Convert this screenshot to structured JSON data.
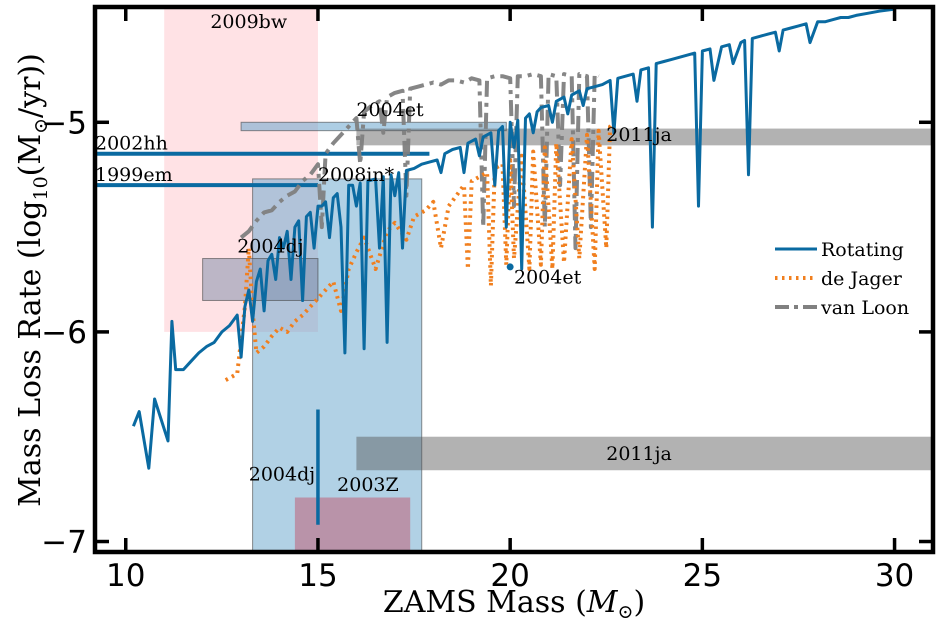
{
  "chart_data": {
    "type": "line",
    "xlabel_text": "ZAMS Mass (",
    "xlabel_math": "M",
    "xlabel_sub": "⊙",
    "xlabel_close": ")",
    "ylabel_text": "Mass Loss Rate (log",
    "ylabel_sub": "10",
    "ylabel_mid": "(M",
    "ylabel_sun": "⊙",
    "ylabel_close": "/yr))",
    "xlim": [
      9.2,
      31.0
    ],
    "ylim": [
      -7.05,
      -4.45
    ],
    "xticks": [
      10,
      15,
      20,
      25,
      30
    ],
    "xtick_labels": [
      "10",
      "15",
      "20",
      "25",
      "30"
    ],
    "yticks": [
      -7,
      -6,
      -5
    ],
    "ytick_labels": [
      "−7",
      "−6",
      "−5"
    ],
    "legend_position": "center-right",
    "series": [
      {
        "name": "Rotating",
        "color": "#0a6aa1",
        "style": "solid",
        "points": [
          [
            10.2,
            -6.45
          ],
          [
            10.35,
            -6.38
          ],
          [
            10.6,
            -6.65
          ],
          [
            10.75,
            -6.32
          ],
          [
            11.1,
            -6.52
          ],
          [
            11.2,
            -5.95
          ],
          [
            11.3,
            -6.18
          ],
          [
            11.5,
            -6.18
          ],
          [
            11.7,
            -6.14
          ],
          [
            11.9,
            -6.1
          ],
          [
            12.1,
            -6.07
          ],
          [
            12.3,
            -6.05
          ],
          [
            12.5,
            -6.0
          ],
          [
            12.7,
            -5.97
          ],
          [
            12.9,
            -5.92
          ],
          [
            13.0,
            -6.12
          ],
          [
            13.1,
            -5.88
          ],
          [
            13.2,
            -5.8
          ],
          [
            13.3,
            -5.95
          ],
          [
            13.4,
            -5.76
          ],
          [
            13.5,
            -5.7
          ],
          [
            13.6,
            -5.9
          ],
          [
            13.7,
            -5.66
          ],
          [
            13.8,
            -5.63
          ],
          [
            13.9,
            -5.75
          ],
          [
            14.0,
            -5.55
          ],
          [
            14.1,
            -5.6
          ],
          [
            14.2,
            -5.52
          ],
          [
            14.3,
            -5.75
          ],
          [
            14.4,
            -5.5
          ],
          [
            14.5,
            -5.47
          ],
          [
            14.6,
            -5.85
          ],
          [
            14.7,
            -5.45
          ],
          [
            14.8,
            -5.43
          ],
          [
            14.9,
            -5.6
          ],
          [
            15.0,
            -5.4
          ],
          [
            15.1,
            -5.4
          ],
          [
            15.2,
            -5.38
          ],
          [
            15.3,
            -5.55
          ],
          [
            15.4,
            -5.36
          ],
          [
            15.5,
            -5.34
          ],
          [
            15.6,
            -5.5
          ],
          [
            15.7,
            -6.1
          ],
          [
            15.8,
            -5.3
          ],
          [
            15.9,
            -5.3
          ],
          [
            16.0,
            -5.4
          ],
          [
            16.1,
            -5.29
          ],
          [
            16.2,
            -6.08
          ],
          [
            16.3,
            -5.28
          ],
          [
            16.5,
            -5.27
          ],
          [
            16.6,
            -5.6
          ],
          [
            16.7,
            -5.26
          ],
          [
            16.8,
            -6.05
          ],
          [
            16.9,
            -5.25
          ],
          [
            17.0,
            -5.35
          ],
          [
            17.1,
            -5.24
          ],
          [
            17.2,
            -5.6
          ],
          [
            17.3,
            -5.23
          ],
          [
            17.5,
            -5.22
          ],
          [
            17.7,
            -5.2
          ],
          [
            17.9,
            -5.19
          ],
          [
            18.1,
            -5.18
          ],
          [
            18.2,
            -5.24
          ],
          [
            18.3,
            -5.15
          ],
          [
            18.5,
            -5.13
          ],
          [
            18.7,
            -5.12
          ],
          [
            18.8,
            -5.24
          ],
          [
            18.9,
            -5.1
          ],
          [
            19.1,
            -5.08
          ],
          [
            19.2,
            -5.16
          ],
          [
            19.3,
            -5.07
          ],
          [
            19.5,
            -5.05
          ],
          [
            19.6,
            -5.3
          ],
          [
            19.7,
            -5.04
          ],
          [
            19.8,
            -5.02
          ],
          [
            19.9,
            -5.5
          ],
          [
            20.0,
            -5.0
          ],
          [
            20.1,
            -5.12
          ],
          [
            20.2,
            -4.99
          ],
          [
            20.3,
            -5.7
          ],
          [
            20.4,
            -4.98
          ],
          [
            20.5,
            -4.96
          ],
          [
            20.6,
            -5.05
          ],
          [
            20.7,
            -4.95
          ],
          [
            20.8,
            -4.93
          ],
          [
            21.0,
            -4.92
          ],
          [
            21.1,
            -5.0
          ],
          [
            21.2,
            -4.9
          ],
          [
            21.4,
            -4.88
          ],
          [
            21.5,
            -4.96
          ],
          [
            21.6,
            -4.87
          ],
          [
            21.8,
            -4.85
          ],
          [
            21.9,
            -4.92
          ],
          [
            22.0,
            -4.84
          ],
          [
            22.2,
            -4.83
          ],
          [
            22.4,
            -4.82
          ],
          [
            22.6,
            -4.8
          ],
          [
            22.7,
            -5.05
          ],
          [
            22.8,
            -4.79
          ],
          [
            23.0,
            -4.78
          ],
          [
            23.2,
            -4.77
          ],
          [
            23.3,
            -4.9
          ],
          [
            23.4,
            -4.75
          ],
          [
            23.6,
            -4.74
          ],
          [
            23.7,
            -5.5
          ],
          [
            23.8,
            -4.72
          ],
          [
            24.0,
            -4.71
          ],
          [
            24.2,
            -4.7
          ],
          [
            24.4,
            -4.69
          ],
          [
            24.6,
            -4.68
          ],
          [
            24.8,
            -4.67
          ],
          [
            24.9,
            -5.4
          ],
          [
            25.0,
            -4.66
          ],
          [
            25.2,
            -4.65
          ],
          [
            25.3,
            -4.8
          ],
          [
            25.5,
            -4.64
          ],
          [
            25.7,
            -4.63
          ],
          [
            25.8,
            -4.72
          ],
          [
            26.0,
            -4.62
          ],
          [
            26.1,
            -4.61
          ],
          [
            26.2,
            -5.25
          ],
          [
            26.3,
            -4.6
          ],
          [
            26.5,
            -4.59
          ],
          [
            26.7,
            -4.58
          ],
          [
            26.9,
            -4.57
          ],
          [
            27.0,
            -4.66
          ],
          [
            27.1,
            -4.56
          ],
          [
            27.3,
            -4.55
          ],
          [
            27.5,
            -4.54
          ],
          [
            27.7,
            -4.53
          ],
          [
            27.8,
            -4.62
          ],
          [
            28.0,
            -4.52
          ],
          [
            28.2,
            -4.52
          ],
          [
            28.4,
            -4.51
          ],
          [
            28.6,
            -4.5
          ],
          [
            28.8,
            -4.5
          ],
          [
            29.0,
            -4.49
          ],
          [
            29.3,
            -4.48
          ],
          [
            29.6,
            -4.47
          ],
          [
            30.0,
            -4.46
          ]
        ]
      },
      {
        "name": "de Jager",
        "color": "#f17f1e",
        "style": "dotted",
        "points": [
          [
            12.6,
            -6.23
          ],
          [
            12.9,
            -6.2
          ],
          [
            13.1,
            -5.88
          ],
          [
            13.2,
            -5.6
          ],
          [
            13.3,
            -5.9
          ],
          [
            13.4,
            -6.1
          ],
          [
            13.6,
            -6.07
          ],
          [
            13.8,
            -6.02
          ],
          [
            14.0,
            -5.98
          ],
          [
            14.2,
            -6.0
          ],
          [
            14.4,
            -5.95
          ],
          [
            14.6,
            -5.92
          ],
          [
            14.8,
            -5.88
          ],
          [
            15.0,
            -5.84
          ],
          [
            15.2,
            -5.8
          ],
          [
            15.4,
            -5.76
          ],
          [
            15.6,
            -5.9
          ],
          [
            15.8,
            -5.7
          ],
          [
            15.9,
            -5.66
          ],
          [
            16.0,
            -5.62
          ],
          [
            16.2,
            -5.55
          ],
          [
            16.5,
            -5.7
          ],
          [
            16.8,
            -5.52
          ],
          [
            17.0,
            -5.48
          ],
          [
            17.3,
            -5.56
          ],
          [
            17.5,
            -5.45
          ],
          [
            17.8,
            -5.42
          ],
          [
            18.0,
            -5.38
          ],
          [
            18.2,
            -5.6
          ],
          [
            18.4,
            -5.4
          ],
          [
            18.6,
            -5.35
          ],
          [
            18.8,
            -5.3
          ],
          [
            18.9,
            -5.7
          ],
          [
            19.0,
            -5.28
          ],
          [
            19.2,
            -5.26
          ],
          [
            19.4,
            -5.24
          ],
          [
            19.5,
            -5.78
          ],
          [
            19.6,
            -5.22
          ],
          [
            19.8,
            -5.2
          ],
          [
            19.9,
            -5.68
          ],
          [
            20.0,
            -5.18
          ],
          [
            20.1,
            -5.65
          ],
          [
            20.3,
            -5.16
          ],
          [
            20.5,
            -5.7
          ],
          [
            20.6,
            -5.14
          ],
          [
            20.8,
            -5.68
          ],
          [
            20.9,
            -5.12
          ],
          [
            21.1,
            -5.7
          ],
          [
            21.2,
            -5.1
          ],
          [
            21.4,
            -5.67
          ],
          [
            21.6,
            -5.08
          ],
          [
            21.8,
            -5.65
          ],
          [
            22.0,
            -5.06
          ],
          [
            22.2,
            -5.7
          ],
          [
            22.3,
            -5.04
          ],
          [
            22.5,
            -5.6
          ],
          [
            22.6,
            -5.02
          ],
          [
            22.7,
            -5.0
          ]
        ]
      },
      {
        "name": "van Loon",
        "color": "#808080",
        "style": "dashdot",
        "points": [
          [
            13.0,
            -5.55
          ],
          [
            13.2,
            -5.52
          ],
          [
            13.4,
            -5.47
          ],
          [
            13.6,
            -5.43
          ],
          [
            13.8,
            -5.42
          ],
          [
            14.0,
            -5.38
          ],
          [
            14.2,
            -5.35
          ],
          [
            14.4,
            -5.33
          ],
          [
            14.6,
            -5.28
          ],
          [
            14.8,
            -5.25
          ],
          [
            15.0,
            -5.2
          ],
          [
            15.1,
            -5.5
          ],
          [
            15.2,
            -5.15
          ],
          [
            15.4,
            -5.1
          ],
          [
            15.6,
            -5.06
          ],
          [
            15.8,
            -5.02
          ],
          [
            16.0,
            -4.98
          ],
          [
            16.1,
            -5.2
          ],
          [
            16.2,
            -4.95
          ],
          [
            16.4,
            -4.92
          ],
          [
            16.6,
            -4.9
          ],
          [
            16.7,
            -5.05
          ],
          [
            16.8,
            -4.88
          ],
          [
            17.0,
            -4.86
          ],
          [
            17.2,
            -4.85
          ],
          [
            17.3,
            -5.35
          ],
          [
            17.4,
            -4.84
          ],
          [
            17.6,
            -4.83
          ],
          [
            17.8,
            -4.82
          ],
          [
            18.0,
            -4.81
          ],
          [
            18.2,
            -4.82
          ],
          [
            18.4,
            -4.8
          ],
          [
            18.6,
            -4.8
          ],
          [
            18.8,
            -4.81
          ],
          [
            19.0,
            -4.79
          ],
          [
            19.2,
            -4.8
          ],
          [
            19.3,
            -5.5
          ],
          [
            19.4,
            -4.79
          ],
          [
            19.6,
            -4.78
          ],
          [
            19.8,
            -4.78
          ],
          [
            20.0,
            -4.79
          ],
          [
            20.1,
            -5.4
          ],
          [
            20.2,
            -4.78
          ],
          [
            20.4,
            -4.78
          ],
          [
            20.6,
            -4.77
          ],
          [
            20.8,
            -4.78
          ],
          [
            20.9,
            -5.5
          ],
          [
            21.0,
            -4.77
          ],
          [
            21.2,
            -4.78
          ],
          [
            21.3,
            -5.3
          ],
          [
            21.4,
            -4.77
          ],
          [
            21.6,
            -4.78
          ],
          [
            21.7,
            -5.6
          ],
          [
            21.8,
            -4.77
          ],
          [
            22.0,
            -4.78
          ],
          [
            22.1,
            -5.5
          ],
          [
            22.2,
            -4.77
          ],
          [
            22.3,
            -4.78
          ]
        ]
      }
    ],
    "markers": [
      {
        "name": "2004et-point",
        "x": 20.0,
        "y": -5.69,
        "color": "#0a6aa1"
      }
    ],
    "hlines": [
      {
        "name": "2002hh",
        "x0": 9.2,
        "x1": 17.9,
        "y": -5.15,
        "color": "#0a6aa1"
      },
      {
        "name": "1999em",
        "x0": 9.2,
        "x1": 15.0,
        "y": -5.3,
        "color": "#0a6aa1"
      }
    ],
    "vlines": [
      {
        "name": "2004dj-line",
        "x": 15.0,
        "y0": -6.92,
        "y1": -6.37,
        "color": "#0a6aa1"
      }
    ],
    "regions": [
      {
        "name": "2009bw",
        "x0": 11.0,
        "x1": 15.0,
        "y0": -6.0,
        "y1": -4.45,
        "color": "#ffb6bf",
        "opacity": 0.4
      },
      {
        "name": "2008in",
        "x0": 13.3,
        "x1": 17.7,
        "y0": -7.05,
        "y1": -5.27,
        "color": "#6aa6ce",
        "opacity": 0.52,
        "stroke": true
      },
      {
        "name": "2004et-box",
        "x0": 13.0,
        "x1": 19.9,
        "y0": -5.04,
        "y1": -5.0,
        "color": "#6aa6ce",
        "opacity": 0.55,
        "stroke": true
      },
      {
        "name": "2004dj-box",
        "x0": 12.0,
        "x1": 15.0,
        "y0": -5.85,
        "y1": -5.65,
        "color": "#7a8aa8",
        "opacity": 0.5,
        "stroke": true
      },
      {
        "name": "2011ja-top",
        "x0": 16.0,
        "x1": 31.0,
        "y0": -5.11,
        "y1": -5.03,
        "color": "#555555",
        "opacity": 0.45
      },
      {
        "name": "2011ja-bottom",
        "x0": 16.0,
        "x1": 31.0,
        "y0": -6.66,
        "y1": -6.5,
        "color": "#555555",
        "opacity": 0.45
      },
      {
        "name": "2003Z",
        "x0": 14.4,
        "x1": 17.4,
        "y0": -7.05,
        "y1": -6.79,
        "color": "#c06078",
        "opacity": 0.55
      }
    ],
    "annotations": [
      {
        "name": "label-2009bw",
        "text": "2009bw",
        "x": 12.2,
        "y": -4.55
      },
      {
        "name": "label-2004et-top",
        "text": "2004et",
        "x": 16.0,
        "y": -4.97
      },
      {
        "name": "label-2002hh",
        "text": "2002hh",
        "x": 9.2,
        "y": -5.13
      },
      {
        "name": "label-2011ja-top",
        "text": "2011ja",
        "x": 22.5,
        "y": -5.09
      },
      {
        "name": "label-1999em",
        "text": "1999em",
        "x": 9.2,
        "y": -5.28
      },
      {
        "name": "label-2008in",
        "text": "2008in*",
        "x": 15.0,
        "y": -5.28
      },
      {
        "name": "label-2004dj-top",
        "text": "2004dj",
        "x": 12.9,
        "y": -5.62
      },
      {
        "name": "label-2004et-bottom",
        "text": "2004et",
        "x": 20.1,
        "y": -5.77
      },
      {
        "name": "label-2011ja-bottom",
        "text": "2011ja",
        "x": 22.5,
        "y": -6.61
      },
      {
        "name": "label-2004dj-bottom",
        "text": "2004dj",
        "x": 13.2,
        "y": -6.71
      },
      {
        "name": "label-2003Z",
        "text": "2003Z",
        "x": 15.5,
        "y": -6.76
      }
    ]
  }
}
